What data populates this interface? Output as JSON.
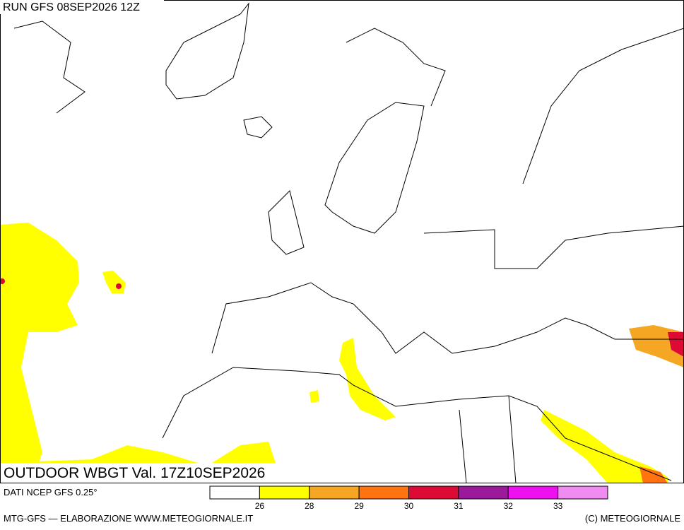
{
  "header": {
    "run": "RUN GFS 08SEP2026 12Z"
  },
  "map": {
    "title": "OUTDOOR WBGT Val. 17Z10SEP2026"
  },
  "footer": {
    "source": "DATI NCEP GFS 0.25°",
    "credit": "MTG-GFS — ELABORAZIONE WWW.METEOGIORNALE.IT",
    "copyright": "(C) METEOGIORNALE"
  },
  "colorbar": {
    "colors": [
      "#ffffff",
      "#ffff00",
      "#f5a623",
      "#ff7410",
      "#dc0a34",
      "#9b1a9b",
      "#ee10ee",
      "#f08cf0"
    ],
    "labels": [
      26,
      28,
      29,
      30,
      31,
      32,
      33
    ]
  }
}
